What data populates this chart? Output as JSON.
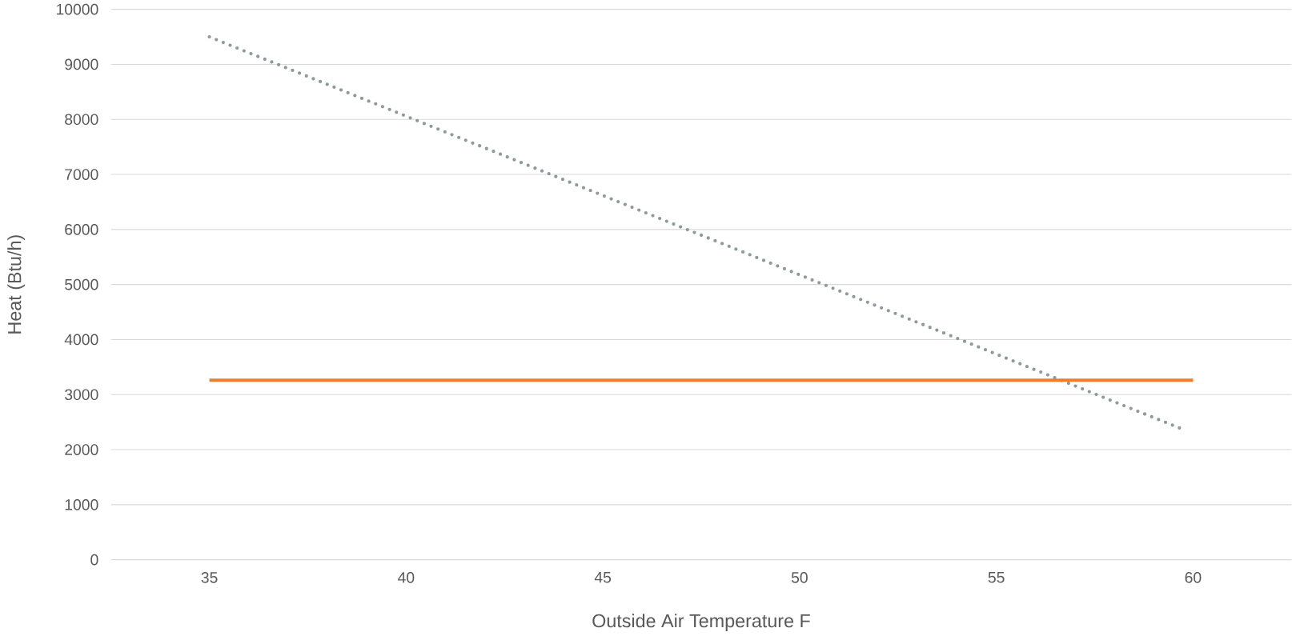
{
  "chart_data": {
    "type": "line",
    "xlabel": "Outside Air Temperature F",
    "ylabel": "Heat (Btu/h)",
    "xlim": [
      32.5,
      62.5
    ],
    "xticks": [
      35,
      40,
      45,
      50,
      55,
      60
    ],
    "ylim": [
      0,
      10000
    ],
    "yticks": [
      0,
      1000,
      2000,
      3000,
      4000,
      5000,
      6000,
      7000,
      8000,
      9000,
      10000
    ],
    "grid": "y",
    "marker": "none",
    "series": [
      {
        "color": "#8c9a9e",
        "line_style": "dotted",
        "x": [
          35,
          59.7
        ],
        "values": [
          9500,
          2380
        ]
      },
      {
        "color": "#ed7d31",
        "line_style": "solid",
        "x": [
          35,
          60
        ],
        "values": [
          3260,
          3260
        ]
      }
    ]
  }
}
